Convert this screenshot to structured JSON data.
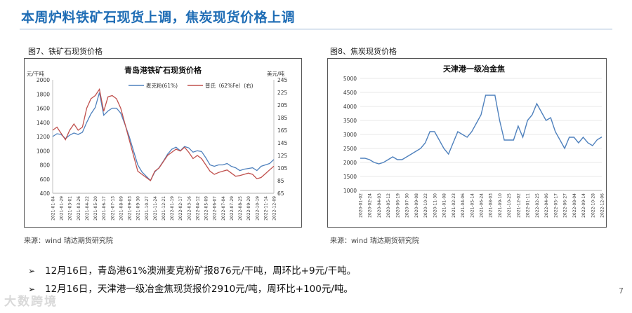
{
  "page": {
    "title": "本周炉料铁矿石现货上调，焦炭现货价格上调",
    "page_number": "7",
    "watermark": "大数跨境",
    "bullets": [
      "12月16日，青岛港61%澳洲麦克粉矿报876元/干吨，周环比+9元/干吨。",
      "12月16日，天津港一级冶金焦现货报价2910元/吨，周环比+100元/吨。"
    ],
    "bullet_marker": "➢"
  },
  "colors": {
    "title": "#1f6db5",
    "series_blue": "#4f81bd",
    "series_red": "#c0504d"
  },
  "chart_data": [
    {
      "type": "line",
      "fig_caption": "图7、铁矿石现货价格",
      "title": "青岛港铁矿石现货价格",
      "source": "来源：wind   瑞达期货研究院",
      "left_unit": "元/干吨",
      "right_unit": "美元/吨",
      "ylim_left": [
        400,
        2000
      ],
      "yticks_left": [
        400,
        600,
        800,
        1000,
        1200,
        1400,
        1600,
        1800,
        2000
      ],
      "ylim_right": [
        65,
        245
      ],
      "yticks_right": [
        65,
        85,
        105,
        125,
        145,
        165,
        185,
        205,
        225,
        245
      ],
      "xticks": [
        "2021-01-04",
        "2021-01-29",
        "2021-03-01",
        "2021-03-26",
        "2021-04-22",
        "2021-05-20",
        "2021-06-17",
        "2021-07-13",
        "2021-08-09",
        "2021-09-03",
        "2021-09-30",
        "2021-10-27",
        "2021-11-24",
        "2021-12-21",
        "2022-01-19",
        "2022-02-17",
        "2022-03-16",
        "2022-04-12",
        "2022-05-09",
        "2022-06-07",
        "2022-07-04",
        "2022-07-29",
        "2022-08-25",
        "2022-09-20",
        "2022-10-19",
        "2022-11-14",
        "2022-12-09"
      ],
      "legend": [
        "麦克粉(61%)",
        "普氏（62%Fe）(右)"
      ],
      "series": [
        {
          "name": "麦克粉(61%)",
          "axis": "left",
          "x": [
            0,
            1,
            2,
            3,
            4,
            5,
            6,
            7,
            8,
            9,
            10,
            11,
            12,
            13,
            14,
            15,
            16,
            17,
            18,
            19,
            20,
            21,
            22,
            23,
            24,
            25,
            26,
            27,
            28,
            29,
            30,
            31,
            32,
            33,
            34,
            35,
            36,
            37,
            38,
            39,
            40,
            41,
            42,
            43,
            44,
            45,
            46,
            47,
            48,
            49,
            50,
            51,
            52
          ],
          "values": [
            1200,
            1240,
            1230,
            1170,
            1220,
            1250,
            1230,
            1260,
            1400,
            1520,
            1610,
            1820,
            1500,
            1560,
            1600,
            1600,
            1530,
            1370,
            1200,
            1000,
            800,
            700,
            640,
            580,
            700,
            760,
            850,
            950,
            1020,
            1050,
            1000,
            1060,
            1040,
            980,
            1000,
            990,
            900,
            800,
            780,
            800,
            800,
            820,
            780,
            760,
            720,
            740,
            750,
            760,
            720,
            780,
            800,
            820,
            876
          ]
        },
        {
          "name": "普氏（62%Fe）(右)",
          "axis": "right",
          "x": [
            0,
            1,
            2,
            3,
            4,
            5,
            6,
            7,
            8,
            9,
            10,
            11,
            12,
            13,
            14,
            15,
            16,
            17,
            18,
            19,
            20,
            21,
            22,
            23,
            24,
            25,
            26,
            27,
            28,
            29,
            30,
            31,
            32,
            33,
            34,
            35,
            36,
            37,
            38,
            39,
            40,
            41,
            42,
            43,
            44,
            45,
            46,
            47,
            48,
            49,
            50,
            51,
            52
          ],
          "values": [
            165,
            170,
            160,
            150,
            165,
            175,
            165,
            170,
            200,
            215,
            220,
            230,
            195,
            218,
            220,
            215,
            200,
            175,
            150,
            125,
            100,
            95,
            90,
            85,
            100,
            105,
            115,
            125,
            130,
            135,
            132,
            138,
            130,
            120,
            125,
            120,
            110,
            100,
            95,
            98,
            100,
            102,
            97,
            92,
            93,
            95,
            97,
            95,
            88,
            90,
            96,
            102,
            108
          ]
        }
      ]
    },
    {
      "type": "line",
      "fig_caption": "图8、焦炭现货价格",
      "title": "天津港一级冶金焦",
      "source": "来源：wind   瑞达期货研究院",
      "ylim": [
        1000,
        5000
      ],
      "yticks": [
        1000,
        1500,
        2000,
        2500,
        3000,
        3500,
        4000,
        4500,
        5000
      ],
      "xticks": [
        "2020-01-02",
        "2020-02-24",
        "2020-04-03",
        "2020-05-12",
        "2020-06-19",
        "2020-07-30",
        "2020-09-08",
        "2020-10-22",
        "2020-11-30",
        "2021-01-08",
        "2021-02-23",
        "2021-04-06",
        "2021-05-14",
        "2021-06-24",
        "2021-08-03",
        "2021-09-10",
        "2021-10-25",
        "2021-12-02",
        "2022-01-11",
        "2022-02-25",
        "2022-04-06",
        "2022-05-17",
        "2022-06-27",
        "2022-08-04",
        "2022-09-14",
        "2022-10-28",
        "2022-12-06"
      ],
      "series": [
        {
          "name": "",
          "x": [
            0,
            1,
            2,
            3,
            4,
            5,
            6,
            7,
            8,
            9,
            10,
            11,
            12,
            13,
            14,
            15,
            16,
            17,
            18,
            19,
            20,
            21,
            22,
            23,
            24,
            25,
            26,
            27,
            28,
            29,
            30,
            31,
            32,
            33,
            34,
            35,
            36,
            37,
            38,
            39,
            40,
            41,
            42,
            43,
            44,
            45,
            46,
            47,
            48,
            49,
            50,
            51,
            52
          ],
          "values": [
            2150,
            2150,
            2100,
            2000,
            1950,
            2000,
            2100,
            2200,
            2100,
            2100,
            2200,
            2300,
            2400,
            2500,
            2700,
            3100,
            3100,
            2800,
            2500,
            2300,
            2700,
            3100,
            3000,
            2900,
            3100,
            3400,
            3700,
            4400,
            4400,
            4400,
            3500,
            2800,
            2800,
            2800,
            3300,
            2900,
            3500,
            3700,
            4100,
            3800,
            3500,
            3600,
            3100,
            2800,
            2500,
            2900,
            2900,
            2700,
            2900,
            2700,
            2600,
            2810,
            2910
          ]
        }
      ]
    }
  ]
}
